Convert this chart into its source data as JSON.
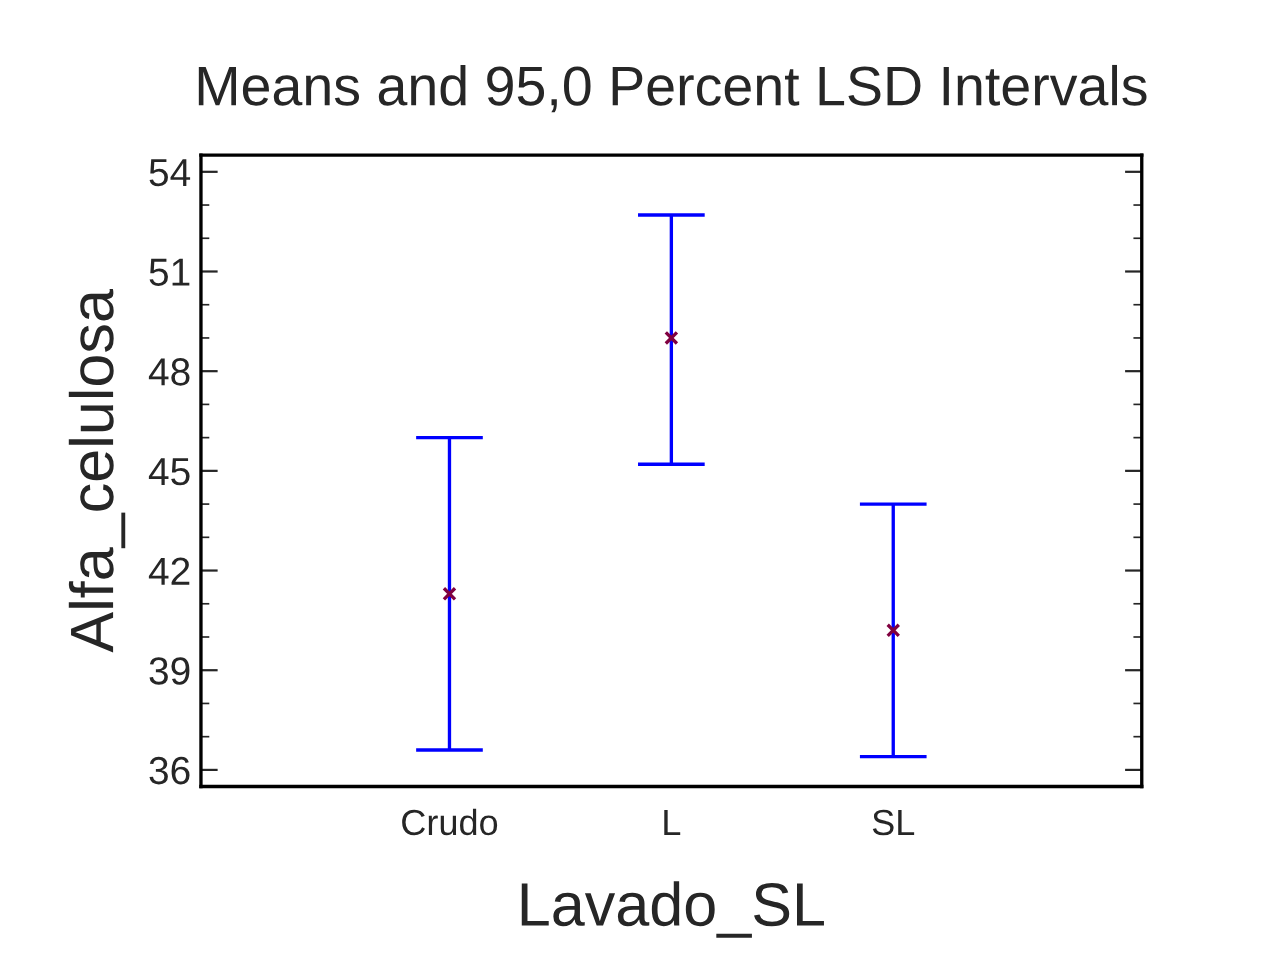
{
  "chart_data": {
    "type": "scatter",
    "title": "Means and 95,0 Percent LSD Intervals",
    "xlabel": "Lavado_SL",
    "ylabel": "Alfa_celulosa",
    "categories": [
      "Crudo",
      "L",
      "SL"
    ],
    "series": [
      {
        "color": "#0000ff",
        "colors": [
          "#800040",
          "#800040",
          "#800040"
        ],
        "values": [
          41.3,
          49.0,
          40.2
        ],
        "errors": [
          [
            36.6,
            46.0
          ],
          [
            45.2,
            52.7
          ],
          [
            36.4,
            44.0
          ]
        ]
      }
    ],
    "ylim": [
      35.5,
      54.5
    ],
    "yticks": [
      36,
      39,
      42,
      45,
      48,
      51,
      54
    ],
    "marker": "cross",
    "grid": false,
    "legend": false
  }
}
